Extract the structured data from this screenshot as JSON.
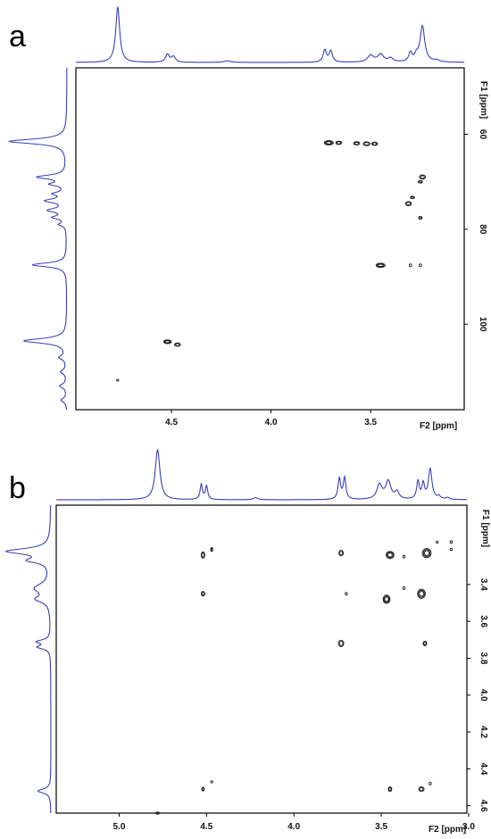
{
  "chart_data": [
    {
      "panel": "a",
      "type": "heatmap",
      "experiment_labels": {
        "x": "F2 [ppm]",
        "y": "F1 [ppm]"
      },
      "x_axis": {
        "label": "F2 [ppm]",
        "range_ppm": [
          4.98,
          3.03
        ],
        "reversed": true,
        "ticks": [
          4.5,
          4.0,
          3.5
        ]
      },
      "y_axis": {
        "label": "F1 [ppm]",
        "range_ppm": [
          46,
          118
        ],
        "reversed": false,
        "ticks": [
          60,
          80,
          100
        ]
      },
      "cross_peaks": [
        {
          "x": 3.71,
          "y": 61.8,
          "w": 0.045,
          "h": 0.9
        },
        {
          "x": 3.66,
          "y": 61.8,
          "w": 0.03,
          "h": 0.7
        },
        {
          "x": 3.57,
          "y": 61.9,
          "w": 0.03,
          "h": 0.7
        },
        {
          "x": 3.52,
          "y": 62.0,
          "w": 0.035,
          "h": 0.8
        },
        {
          "x": 3.48,
          "y": 62.0,
          "w": 0.03,
          "h": 0.7
        },
        {
          "x": 3.24,
          "y": 69.0,
          "w": 0.03,
          "h": 0.9
        },
        {
          "x": 3.25,
          "y": 70.0,
          "w": 0.02,
          "h": 0.5
        },
        {
          "x": 3.29,
          "y": 73.3,
          "w": 0.02,
          "h": 0.5
        },
        {
          "x": 3.31,
          "y": 74.6,
          "w": 0.03,
          "h": 0.9
        },
        {
          "x": 3.25,
          "y": 77.6,
          "w": 0.018,
          "h": 0.6
        },
        {
          "x": 3.45,
          "y": 87.6,
          "w": 0.045,
          "h": 0.9
        },
        {
          "x": 3.3,
          "y": 87.6,
          "w": 0.012,
          "h": 0.6
        },
        {
          "x": 3.25,
          "y": 87.6,
          "w": 0.012,
          "h": 0.6
        },
        {
          "x": 4.52,
          "y": 103.7,
          "w": 0.04,
          "h": 0.8
        },
        {
          "x": 4.47,
          "y": 104.3,
          "w": 0.03,
          "h": 0.7
        },
        {
          "x": 4.77,
          "y": 111.8,
          "w": 0.008,
          "h": 0.4
        }
      ],
      "f2_projection_peaks": [
        {
          "ppm": 4.77,
          "height": 1.0,
          "width": 0.012
        },
        {
          "ppm": 4.52,
          "height": 0.14,
          "width": 0.012
        },
        {
          "ppm": 4.49,
          "height": 0.1,
          "width": 0.012
        },
        {
          "ppm": 4.22,
          "height": 0.03,
          "width": 0.02
        },
        {
          "ppm": 3.73,
          "height": 0.22,
          "width": 0.01
        },
        {
          "ppm": 3.7,
          "height": 0.2,
          "width": 0.01
        },
        {
          "ppm": 3.5,
          "height": 0.12,
          "width": 0.018
        },
        {
          "ppm": 3.45,
          "height": 0.14,
          "width": 0.018
        },
        {
          "ppm": 3.4,
          "height": 0.07,
          "width": 0.015
        },
        {
          "ppm": 3.3,
          "height": 0.16,
          "width": 0.01
        },
        {
          "ppm": 3.27,
          "height": 0.1,
          "width": 0.01
        },
        {
          "ppm": 3.24,
          "height": 0.65,
          "width": 0.014
        },
        {
          "ppm": 3.17,
          "height": 0.03,
          "width": 0.02
        }
      ],
      "f1_projection_peaks": [
        {
          "ppm": 61.5,
          "height": 1.0,
          "width": 0.6
        },
        {
          "ppm": 69.0,
          "height": 0.5,
          "width": 0.5
        },
        {
          "ppm": 70.5,
          "height": 0.25,
          "width": 0.4
        },
        {
          "ppm": 72.5,
          "height": 0.2,
          "width": 0.4
        },
        {
          "ppm": 74.0,
          "height": 0.35,
          "width": 0.5
        },
        {
          "ppm": 76.0,
          "height": 0.3,
          "width": 0.5
        },
        {
          "ppm": 77.5,
          "height": 0.22,
          "width": 0.4
        },
        {
          "ppm": 79.0,
          "height": 0.12,
          "width": 0.4
        },
        {
          "ppm": 87.5,
          "height": 0.6,
          "width": 0.5
        },
        {
          "ppm": 103.5,
          "height": 0.75,
          "width": 0.6
        },
        {
          "ppm": 107.0,
          "height": 0.12,
          "width": 0.5
        },
        {
          "ppm": 110.0,
          "height": 0.1,
          "width": 0.5
        },
        {
          "ppm": 113.0,
          "height": 0.12,
          "width": 0.5
        },
        {
          "ppm": 116.0,
          "height": 0.1,
          "width": 0.5
        }
      ]
    },
    {
      "panel": "b",
      "type": "heatmap",
      "experiment_labels": {
        "x": "F2 [ppm]",
        "y": "F1 [ppm]"
      },
      "x_axis": {
        "label": "F2 [ppm]",
        "range_ppm": [
          5.36,
          3.01
        ],
        "reversed": true,
        "ticks": [
          5.0,
          4.5,
          4.0,
          3.5,
          3.0
        ]
      },
      "y_axis": {
        "label": "F1 [ppm]",
        "range_ppm": [
          2.97,
          4.64
        ],
        "reversed": false,
        "ticks": [
          3.4,
          3.6,
          3.8,
          4.0,
          4.2,
          4.4,
          4.6
        ]
      },
      "cross_peaks": [
        {
          "x": 4.52,
          "y": 3.24,
          "w": 0.02,
          "h": 0.035
        },
        {
          "x": 4.47,
          "y": 3.21,
          "w": 0.008,
          "h": 0.02
        },
        {
          "x": 4.52,
          "y": 3.45,
          "w": 0.02,
          "h": 0.025
        },
        {
          "x": 3.73,
          "y": 3.23,
          "w": 0.025,
          "h": 0.03
        },
        {
          "x": 3.7,
          "y": 3.45,
          "w": 0.008,
          "h": 0.015
        },
        {
          "x": 3.73,
          "y": 3.72,
          "w": 0.03,
          "h": 0.035
        },
        {
          "x": 3.45,
          "y": 3.24,
          "w": 0.045,
          "h": 0.04
        },
        {
          "x": 3.37,
          "y": 3.25,
          "w": 0.01,
          "h": 0.015
        },
        {
          "x": 3.37,
          "y": 3.42,
          "w": 0.01,
          "h": 0.015
        },
        {
          "x": 3.47,
          "y": 3.48,
          "w": 0.04,
          "h": 0.045
        },
        {
          "x": 3.24,
          "y": 3.23,
          "w": 0.05,
          "h": 0.05
        },
        {
          "x": 3.27,
          "y": 3.45,
          "w": 0.045,
          "h": 0.05
        },
        {
          "x": 3.25,
          "y": 3.72,
          "w": 0.02,
          "h": 0.025
        },
        {
          "x": 3.18,
          "y": 3.17,
          "w": 0.008,
          "h": 0.012
        },
        {
          "x": 3.1,
          "y": 3.17,
          "w": 0.012,
          "h": 0.015
        },
        {
          "x": 3.1,
          "y": 3.21,
          "w": 0.008,
          "h": 0.012
        },
        {
          "x": 4.52,
          "y": 4.51,
          "w": 0.015,
          "h": 0.02
        },
        {
          "x": 4.47,
          "y": 4.47,
          "w": 0.006,
          "h": 0.012
        },
        {
          "x": 3.45,
          "y": 4.51,
          "w": 0.02,
          "h": 0.025
        },
        {
          "x": 3.27,
          "y": 4.51,
          "w": 0.03,
          "h": 0.025
        },
        {
          "x": 3.22,
          "y": 4.48,
          "w": 0.008,
          "h": 0.015
        },
        {
          "x": 4.78,
          "y": 4.64,
          "w": 0.02,
          "h": 0.008
        }
      ],
      "f2_projection_peaks": [
        {
          "ppm": 4.78,
          "height": 1.4,
          "width": 0.016
        },
        {
          "ppm": 4.53,
          "height": 0.42,
          "width": 0.008
        },
        {
          "ppm": 4.5,
          "height": 0.38,
          "width": 0.008
        },
        {
          "ppm": 4.22,
          "height": 0.06,
          "width": 0.015
        },
        {
          "ppm": 3.74,
          "height": 0.58,
          "width": 0.009
        },
        {
          "ppm": 3.71,
          "height": 0.6,
          "width": 0.009
        },
        {
          "ppm": 3.51,
          "height": 0.4,
          "width": 0.018
        },
        {
          "ppm": 3.46,
          "height": 0.5,
          "width": 0.018
        },
        {
          "ppm": 3.41,
          "height": 0.2,
          "width": 0.014
        },
        {
          "ppm": 3.29,
          "height": 0.5,
          "width": 0.009
        },
        {
          "ppm": 3.26,
          "height": 0.42,
          "width": 0.009
        },
        {
          "ppm": 3.22,
          "height": 0.85,
          "width": 0.012
        },
        {
          "ppm": 3.17,
          "height": 0.08,
          "width": 0.012
        },
        {
          "ppm": 3.12,
          "height": 0.05,
          "width": 0.012
        }
      ],
      "f1_projection_peaks": [
        {
          "ppm": 3.22,
          "height": 1.0,
          "width": 0.018
        },
        {
          "ppm": 3.27,
          "height": 0.45,
          "width": 0.016
        },
        {
          "ppm": 3.42,
          "height": 0.35,
          "width": 0.03
        },
        {
          "ppm": 3.48,
          "height": 0.3,
          "width": 0.02
        },
        {
          "ppm": 3.71,
          "height": 0.3,
          "width": 0.012
        },
        {
          "ppm": 3.74,
          "height": 0.28,
          "width": 0.012
        },
        {
          "ppm": 4.52,
          "height": 0.3,
          "width": 0.014
        }
      ]
    }
  ],
  "panels": [
    {
      "letter": "a",
      "x_ticks": [
        "4.5",
        "4.0",
        "3.5"
      ],
      "y_ticks": [
        "60",
        "80",
        "100"
      ],
      "x_label": "F2 [ppm]",
      "y_label": "F1 [ppm]"
    },
    {
      "letter": "b",
      "x_ticks": [
        "5.0",
        "4.5",
        "4.0",
        "3.5",
        "3.0"
      ],
      "y_ticks": [
        "3.4",
        "3.6",
        "3.8",
        "4.0",
        "4.2",
        "4.4",
        "4.6"
      ],
      "x_label": "F2 [ppm]",
      "y_label": "F1 [ppm]"
    }
  ],
  "colors": {
    "projection": "#3a3fb8",
    "contour": "#1a1a1a",
    "frame": "#000000"
  }
}
